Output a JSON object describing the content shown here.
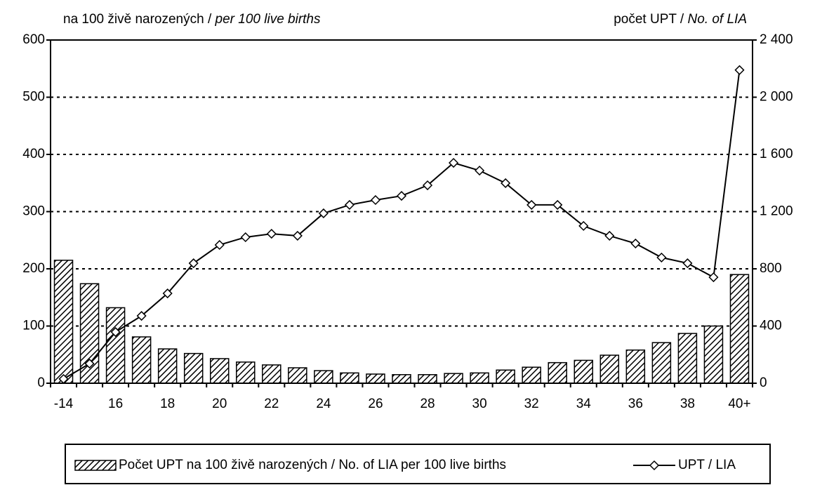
{
  "chart_data": {
    "type": "bar_line",
    "ylabel": [
      "na  100 živě narozených / ",
      "per 100 live births"
    ],
    "y2label": [
      "počet UPT / ",
      "No. of LIA"
    ],
    "categories": [
      "-14",
      null,
      "16",
      null,
      "18",
      null,
      "20",
      null,
      "22",
      null,
      "24",
      null,
      "26",
      null,
      "28",
      null,
      "30",
      null,
      "32",
      null,
      "34",
      null,
      "36",
      null,
      "38",
      null,
      "40+"
    ],
    "series": [
      {
        "name": "Počet UPT na 100 živě narozených / No. of LIA per 100 live births",
        "type": "bar",
        "color": "#000000",
        "values": [
          215,
          174,
          132,
          81,
          60,
          52,
          43,
          37,
          32,
          27,
          22,
          18,
          16,
          15,
          15,
          17,
          18,
          23,
          28,
          36,
          40,
          49,
          58,
          71,
          87,
          100,
          190
        ]
      },
      {
        "name": "UPT / LIA",
        "type": "line",
        "axis": "y2",
        "color": "#000000",
        "values": [
          30,
          137,
          358,
          471,
          628,
          839,
          967,
          1021,
          1045,
          1031,
          1188,
          1247,
          1281,
          1310,
          1384,
          1541,
          1487,
          1399,
          1247,
          1247,
          1100,
          1031,
          977,
          879,
          839,
          741,
          2190
        ]
      }
    ],
    "ylim": [
      0,
      600
    ],
    "yticks": [
      0,
      100,
      200,
      300,
      400,
      500,
      600
    ],
    "y2lim": [
      0,
      2400
    ],
    "y2ticks": [
      0,
      400,
      800,
      {
        "value": 1200,
        "label": "1 200"
      },
      {
        "value": 1600,
        "label": "1 600"
      },
      {
        "value": 2000,
        "label": "2 000"
      },
      {
        "value": 2400,
        "label": "2 400"
      }
    ],
    "grid": true
  }
}
